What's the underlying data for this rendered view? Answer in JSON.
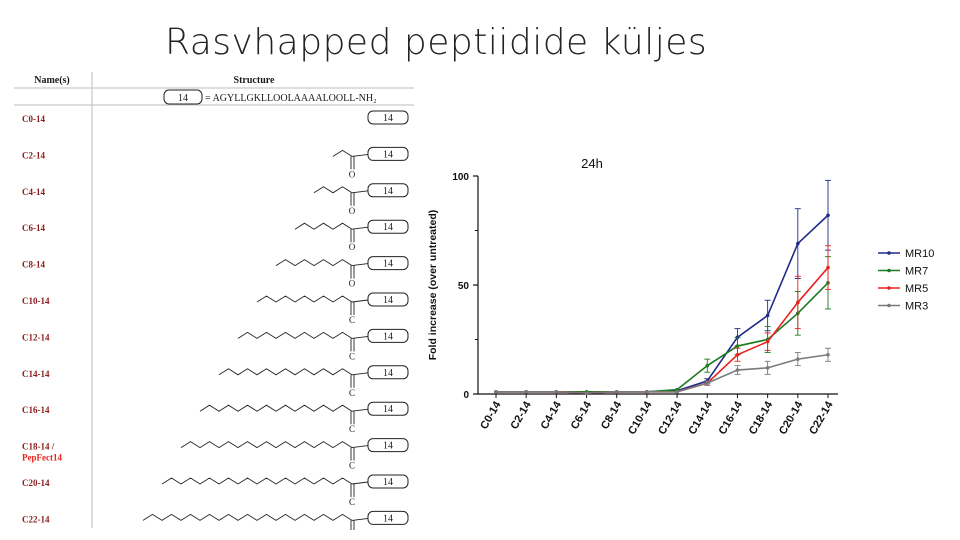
{
  "slide": {
    "title": "Rasvhapped peptiidide küljes"
  },
  "table": {
    "header_name": "Name(s)",
    "header_structure": "Structure",
    "peptide_box": "14",
    "peptide_sequence": "= AGYLLGKLLOOLAAAALOOLL-NH₂",
    "rows": [
      {
        "name": "C0-14",
        "box": "14",
        "chain": 0,
        "highlight": ""
      },
      {
        "name": "C2-14",
        "box": "14",
        "chain": 2,
        "highlight": ""
      },
      {
        "name": "C4-14",
        "box": "14",
        "chain": 4,
        "highlight": ""
      },
      {
        "name": "C6-14",
        "box": "14",
        "chain": 6,
        "highlight": ""
      },
      {
        "name": "C8-14",
        "box": "14",
        "chain": 8,
        "highlight": ""
      },
      {
        "name": "C10-14",
        "box": "14",
        "chain": 10,
        "highlight": ""
      },
      {
        "name": "C12-14",
        "box": "14",
        "chain": 12,
        "highlight": ""
      },
      {
        "name": "C14-14",
        "box": "14",
        "chain": 14,
        "highlight": ""
      },
      {
        "name": "C16-14",
        "box": "14",
        "chain": 16,
        "highlight": ""
      },
      {
        "name": "C18-14 /",
        "box": "14",
        "chain": 18,
        "highlight": "PepFect14"
      },
      {
        "name": "C20-14",
        "box": "14",
        "chain": 20,
        "highlight": ""
      },
      {
        "name": "C22-14",
        "box": "14",
        "chain": 22,
        "highlight": ""
      }
    ],
    "carbonyl_c": "C",
    "carbonyl_o": "O",
    "colors": {
      "name": "#8b1a1a",
      "highlight": "#e8231e",
      "text": "#1a1a1a"
    }
  },
  "chart_data": {
    "type": "line",
    "title": "24h",
    "xlabel": "",
    "ylabel": "Fold increase (over untreated)",
    "ylim": [
      0,
      100
    ],
    "yticks": [
      0,
      50,
      100
    ],
    "categories": [
      "C0-14",
      "C2-14",
      "C4-14",
      "C6-14",
      "C8-14",
      "C10-14",
      "C12-14",
      "C14-14",
      "C16-14",
      "C18-14",
      "C20-14",
      "C22-14"
    ],
    "legend_position": "right",
    "series": [
      {
        "name": "MR10",
        "color": "#1f2a8a",
        "values": [
          1,
          1,
          1,
          0.5,
          1,
          1,
          1.5,
          6,
          26,
          36,
          69,
          82
        ],
        "errors": [
          0,
          0,
          0,
          0,
          0,
          0,
          0,
          1,
          4,
          7,
          16,
          16
        ]
      },
      {
        "name": "MR7",
        "color": "#1e7a1e",
        "values": [
          1,
          1,
          1,
          1,
          1,
          1,
          2,
          13,
          22,
          25,
          37,
          51
        ],
        "errors": [
          0,
          0,
          0,
          0,
          0,
          0,
          0,
          3,
          4,
          6,
          10,
          12
        ]
      },
      {
        "name": "MR5",
        "color": "#e8231e",
        "values": [
          1,
          1,
          1,
          0.5,
          1,
          1,
          1,
          5,
          18,
          24,
          42,
          58
        ],
        "errors": [
          0,
          0,
          0,
          0,
          0,
          0,
          0,
          1,
          3,
          4,
          12,
          10
        ]
      },
      {
        "name": "MR3",
        "color": "#7a7a7a",
        "values": [
          1,
          1,
          1,
          0.5,
          1,
          1,
          1,
          5,
          11,
          12,
          16,
          18
        ],
        "errors": [
          0,
          0,
          0,
          0,
          0,
          0,
          0,
          1,
          2,
          3,
          3,
          3
        ]
      }
    ]
  }
}
